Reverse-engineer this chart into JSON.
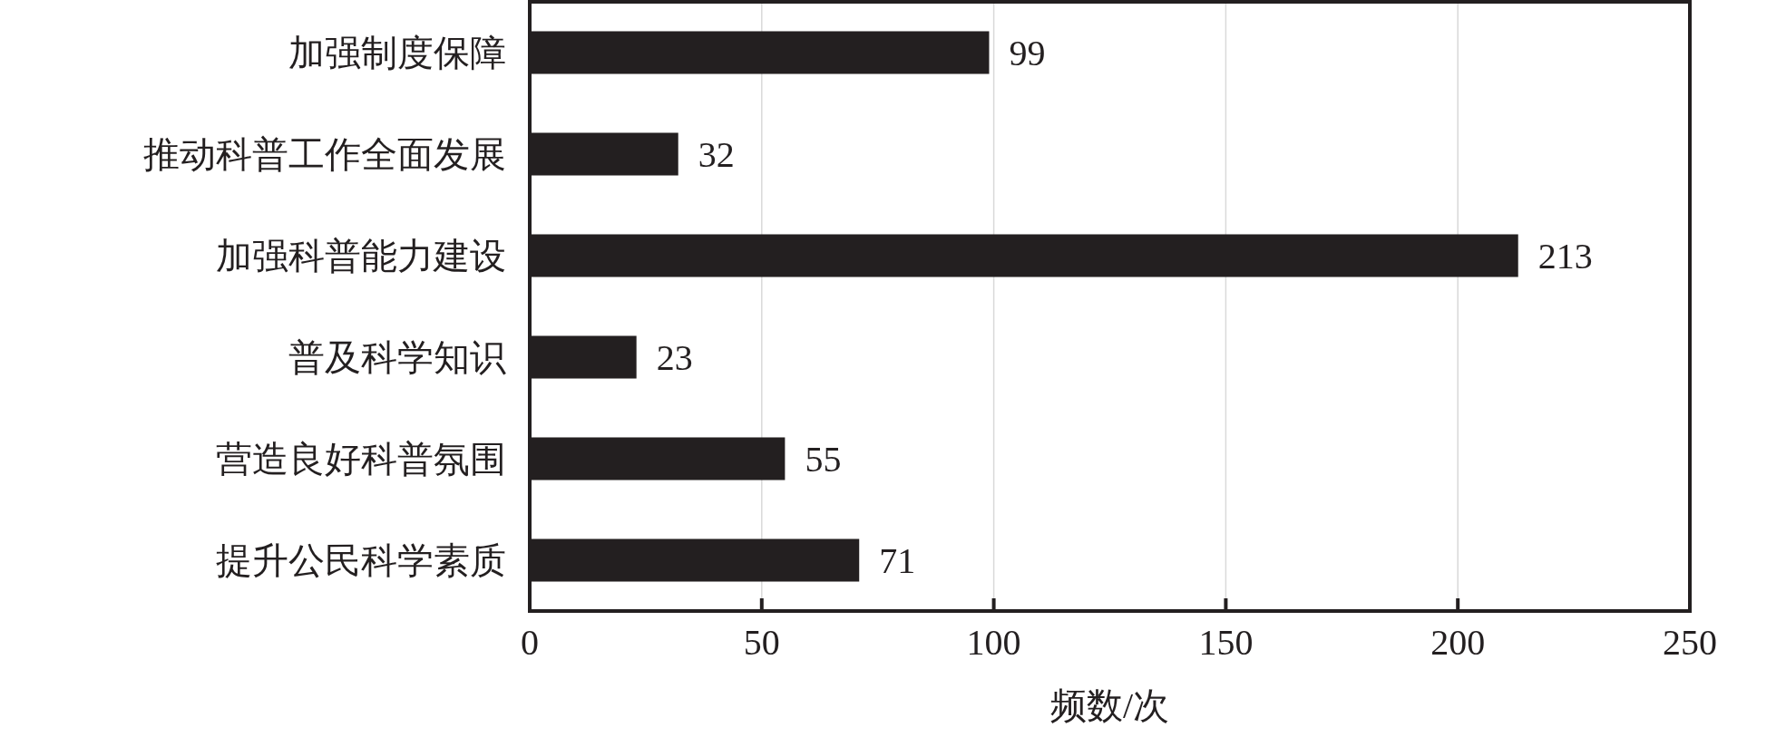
{
  "chart_data": {
    "type": "bar",
    "orientation": "horizontal",
    "xlabel": "频数/次",
    "categories": [
      "加强制度保障",
      "推动科普工作全面发展",
      "加强科普能力建设",
      "普及科学知识",
      "营造良好科普氛围",
      "提升公民科学素质"
    ],
    "values": [
      99,
      32,
      213,
      23,
      55,
      71
    ],
    "color": "#231f20",
    "xlim": [
      0,
      250
    ],
    "xticks": [
      0,
      50,
      100,
      150,
      200,
      250
    ],
    "grid": "x",
    "data_labels": true
  }
}
